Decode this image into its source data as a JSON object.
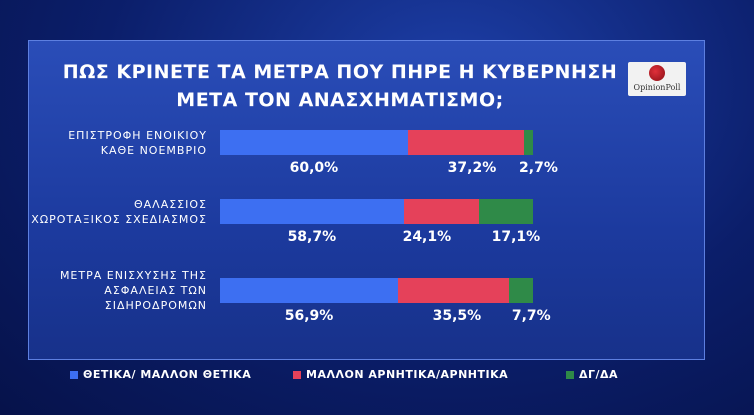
{
  "chart_data": {
    "type": "stacked-bar",
    "title": "ΠΩΣ ΚΡΙΝΕΤΕ ΤΑ ΜΕΤΡΑ ΠΟΥ ΠΗΡΕ Η ΚΥΒΕΡΝΗΣΗ\nΜΕΤΑ ΤΟΝ ΑΝΑΣΧΗΜΑΤΙΣΜΟ;",
    "logo": "OpinionPoll",
    "categories": [
      "ΕΠΙΣΤΡΟΦΗ ΕΝΟΙΚΙΟΥ\nΚΑΘΕ ΝΟΕΜΒΡΙΟ",
      "ΘΑΛΑΣΣΙΟΣ\nΧΩΡΟΤΑΞΙΚΟΣ ΣΧΕΔΙΑΣΜΟΣ",
      "ΜΕΤΡΑ ΕΝΙΣΧΥΣΗΣ ΤΗΣ\nΑΣΦΑΛΕΙΑΣ ΤΩΝ\nΣΙΔΗΡΟΔΡΟΜΩΝ"
    ],
    "xlim": [
      0,
      100
    ],
    "series": [
      {
        "name": "ΘΕΤΙΚΑ/ ΜΑΛΛΟΝ ΘΕΤΙΚΑ",
        "color": "#3d6ff2",
        "values": [
          60.0,
          58.7,
          56.9
        ],
        "value_labels": [
          "60,0%",
          "58,7%",
          "56,9%"
        ]
      },
      {
        "name": "ΜΑΛΛΟΝ ΑΡΝΗΤΙΚΑ/ΑΡΝΗΤΙΚΑ",
        "color": "#e5415a",
        "values": [
          37.2,
          24.1,
          35.5
        ],
        "value_labels": [
          "37,2%",
          "24,1%",
          "35,5%"
        ]
      },
      {
        "name": "ΔΓ/ΔΑ",
        "color": "#2f8a48",
        "values": [
          2.7,
          17.1,
          7.7
        ],
        "value_labels": [
          "2,7%",
          "17,1%",
          "7,7%"
        ]
      }
    ]
  }
}
